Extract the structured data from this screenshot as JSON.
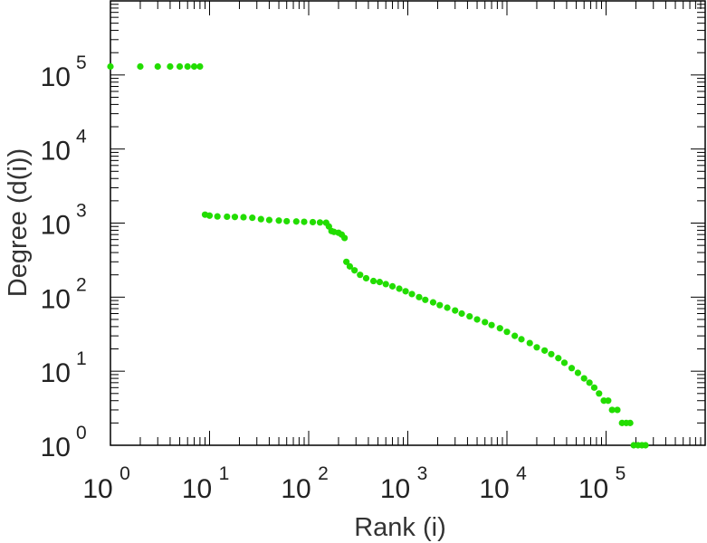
{
  "chart_data": {
    "type": "scatter",
    "xlabel": "Rank (i)",
    "ylabel": "Degree (d(i))",
    "x_scale": "log",
    "y_scale": "log",
    "xlim": [
      1,
      1000000
    ],
    "ylim": [
      1,
      1000000
    ],
    "grid": false,
    "legend": "none",
    "marker_color": "#22dd00",
    "x_tick_labels": [
      {
        "base": "10",
        "exp": "0",
        "value": 1
      },
      {
        "base": "10",
        "exp": "1",
        "value": 10
      },
      {
        "base": "10",
        "exp": "2",
        "value": 100
      },
      {
        "base": "10",
        "exp": "3",
        "value": 1000
      },
      {
        "base": "10",
        "exp": "4",
        "value": 10000
      },
      {
        "base": "10",
        "exp": "5",
        "value": 100000
      }
    ],
    "y_tick_labels": [
      {
        "base": "10",
        "exp": "0",
        "value": 1
      },
      {
        "base": "10",
        "exp": "1",
        "value": 10
      },
      {
        "base": "10",
        "exp": "2",
        "value": 100
      },
      {
        "base": "10",
        "exp": "3",
        "value": 1000
      },
      {
        "base": "10",
        "exp": "4",
        "value": 10000
      },
      {
        "base": "10",
        "exp": "5",
        "value": 100000
      }
    ],
    "series": [
      {
        "points": [
          [
            1,
            130000
          ],
          [
            2,
            130000
          ],
          [
            3,
            130000
          ],
          [
            4,
            130000
          ],
          [
            5,
            130000
          ],
          [
            6,
            130000
          ],
          [
            7,
            130000
          ],
          [
            8,
            130000
          ],
          [
            9,
            1300
          ],
          [
            10,
            1260
          ],
          [
            12,
            1230
          ],
          [
            15,
            1220
          ],
          [
            18,
            1210
          ],
          [
            22,
            1200
          ],
          [
            27,
            1180
          ],
          [
            33,
            1130
          ],
          [
            40,
            1100
          ],
          [
            50,
            1080
          ],
          [
            60,
            1060
          ],
          [
            75,
            1050
          ],
          [
            90,
            1040
          ],
          [
            110,
            1030
          ],
          [
            130,
            1020
          ],
          [
            150,
            1010
          ],
          [
            160,
            900
          ],
          [
            170,
            780
          ],
          [
            180,
            760
          ],
          [
            200,
            740
          ],
          [
            215,
            700
          ],
          [
            230,
            630
          ],
          [
            240,
            300
          ],
          [
            260,
            260
          ],
          [
            290,
            230
          ],
          [
            330,
            200
          ],
          [
            380,
            180
          ],
          [
            450,
            165
          ],
          [
            520,
            160
          ],
          [
            600,
            150
          ],
          [
            700,
            140
          ],
          [
            820,
            130
          ],
          [
            950,
            120
          ],
          [
            1100,
            110
          ],
          [
            1300,
            100
          ],
          [
            1500,
            92
          ],
          [
            1800,
            85
          ],
          [
            2100,
            78
          ],
          [
            2500,
            72
          ],
          [
            3000,
            66
          ],
          [
            3500,
            60
          ],
          [
            4200,
            55
          ],
          [
            5000,
            50
          ],
          [
            6000,
            46
          ],
          [
            7000,
            42
          ],
          [
            8500,
            38
          ],
          [
            10000,
            34
          ],
          [
            12000,
            30
          ],
          [
            14000,
            27
          ],
          [
            17000,
            24
          ],
          [
            20000,
            21
          ],
          [
            24000,
            19
          ],
          [
            28000,
            17
          ],
          [
            33000,
            15
          ],
          [
            38000,
            13
          ],
          [
            45000,
            11
          ],
          [
            52000,
            9.5
          ],
          [
            60000,
            8
          ],
          [
            68000,
            7
          ],
          [
            76000,
            6
          ],
          [
            85000,
            5
          ],
          [
            95000,
            4
          ],
          [
            105000,
            4
          ],
          [
            115000,
            3
          ],
          [
            130000,
            3
          ],
          [
            145000,
            2
          ],
          [
            160000,
            2
          ],
          [
            175000,
            2
          ],
          [
            190000,
            1
          ],
          [
            210000,
            1
          ],
          [
            230000,
            1
          ],
          [
            250000,
            1
          ]
        ]
      }
    ]
  }
}
